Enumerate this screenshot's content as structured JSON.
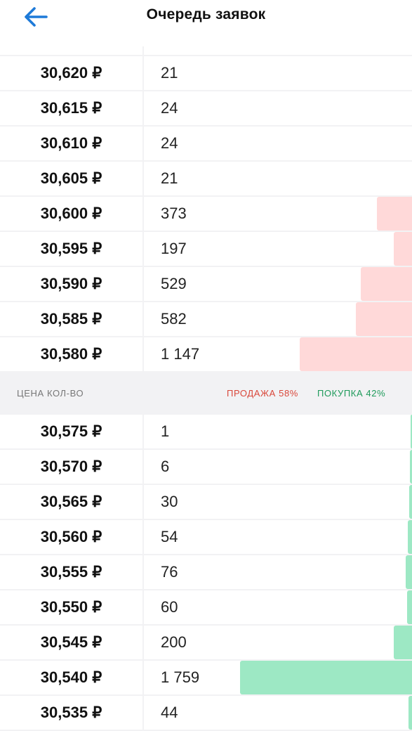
{
  "header": {
    "title": "Очередь заявок",
    "back_icon": "arrow-left-icon"
  },
  "colors": {
    "sell_bar": "#ffd9d9",
    "buy_bar": "#9de8c4",
    "accent": "#1e7ad8"
  },
  "sell_rows": [
    {
      "price": "30,620 ₽",
      "qty": "21",
      "fill": 0
    },
    {
      "price": "30,615 ₽",
      "qty": "24",
      "fill": 0
    },
    {
      "price": "30,610 ₽",
      "qty": "24",
      "fill": 0
    },
    {
      "price": "30,605 ₽",
      "qty": "21",
      "fill": 0
    },
    {
      "price": "30,600 ₽",
      "qty": "373",
      "fill": 0.086
    },
    {
      "price": "30,595 ₽",
      "qty": "197",
      "fill": 0.044
    },
    {
      "price": "30,590 ₽",
      "qty": "529",
      "fill": 0.125
    },
    {
      "price": "30,585 ₽",
      "qty": "582",
      "fill": 0.137
    },
    {
      "price": "30,580 ₽",
      "qty": "1 147",
      "fill": 0.272
    }
  ],
  "legend": {
    "columns": "ЦЕНА КОЛ-ВО",
    "sell_label": "ПРОДАЖА 58%",
    "buy_label": "ПОКУПКА 42%"
  },
  "buy_rows": [
    {
      "price": "30,575 ₽",
      "qty": "1",
      "fill": 0.003
    },
    {
      "price": "30,570 ₽",
      "qty": "6",
      "fill": 0.005
    },
    {
      "price": "30,565 ₽",
      "qty": "30",
      "fill": 0.007
    },
    {
      "price": "30,560 ₽",
      "qty": "54",
      "fill": 0.011
    },
    {
      "price": "30,555 ₽",
      "qty": "76",
      "fill": 0.015
    },
    {
      "price": "30,550 ₽",
      "qty": "60",
      "fill": 0.012
    },
    {
      "price": "30,545 ₽",
      "qty": "200",
      "fill": 0.044
    },
    {
      "price": "30,540 ₽",
      "qty": "1 759",
      "fill": 0.417
    },
    {
      "price": "30,535 ₽",
      "qty": "44",
      "fill": 0.009
    }
  ]
}
